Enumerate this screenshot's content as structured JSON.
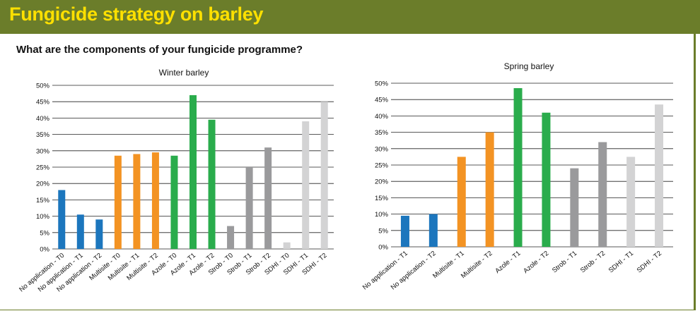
{
  "header": {
    "title": "Fungicide strategy on barley"
  },
  "question": "What are the components of your fungicide programme?",
  "colors": {
    "header_bg": "#6b7d2a",
    "header_text": "#ffe000",
    "blue": "#1c76bd",
    "orange": "#f39323",
    "green": "#2aac4c",
    "dark_grey": "#9a9a9c",
    "light_grey": "#d3d3d4"
  },
  "chart_data": [
    {
      "type": "bar",
      "title": "Winter barley",
      "ylim": [
        0,
        50
      ],
      "y_ticks": [
        "0%",
        "5%",
        "10%",
        "15%",
        "20%",
        "25%",
        "30%",
        "35%",
        "40%",
        "45%",
        "50%"
      ],
      "grid": true,
      "categories": [
        "No application - T0",
        "No application - T1",
        "No application - T2",
        "Multisite - T0",
        "Multisite - T1",
        "Multisite - T2",
        "Azole - T0",
        "Azole - T1",
        "Azole - T2",
        "Strob - T0",
        "Strob - T1",
        "Strob - T2",
        "SDHI - T0",
        "SDHI - T1",
        "SDHI - T2"
      ],
      "values": [
        18,
        10.5,
        9,
        28.5,
        29,
        29.5,
        28.5,
        47,
        39.5,
        7,
        25,
        31,
        2,
        39,
        45
      ],
      "bar_colors": [
        "#1c76bd",
        "#1c76bd",
        "#1c76bd",
        "#f39323",
        "#f39323",
        "#f39323",
        "#2aac4c",
        "#2aac4c",
        "#2aac4c",
        "#9a9a9c",
        "#9a9a9c",
        "#9a9a9c",
        "#d3d3d4",
        "#d3d3d4",
        "#d3d3d4"
      ]
    },
    {
      "type": "bar",
      "title": "Spring barley",
      "ylim": [
        0,
        50
      ],
      "y_ticks": [
        "0%",
        "5%",
        "10%",
        "15%",
        "20%",
        "25%",
        "30%",
        "35%",
        "40%",
        "45%",
        "50%"
      ],
      "grid": true,
      "categories": [
        "No application - T1",
        "No application - T2",
        "Multisite - T1",
        "Multisite - T2",
        "Azole - T1",
        "Azole - T2",
        "Strob - T1",
        "Strob - T2",
        "SDHI - T1",
        "SDHI - T2"
      ],
      "values": [
        9.5,
        10,
        27.5,
        35,
        48.5,
        41,
        24,
        32,
        27.5,
        43.5
      ],
      "bar_colors": [
        "#1c76bd",
        "#1c76bd",
        "#f39323",
        "#f39323",
        "#2aac4c",
        "#2aac4c",
        "#9a9a9c",
        "#9a9a9c",
        "#d3d3d4",
        "#d3d3d4"
      ]
    }
  ]
}
